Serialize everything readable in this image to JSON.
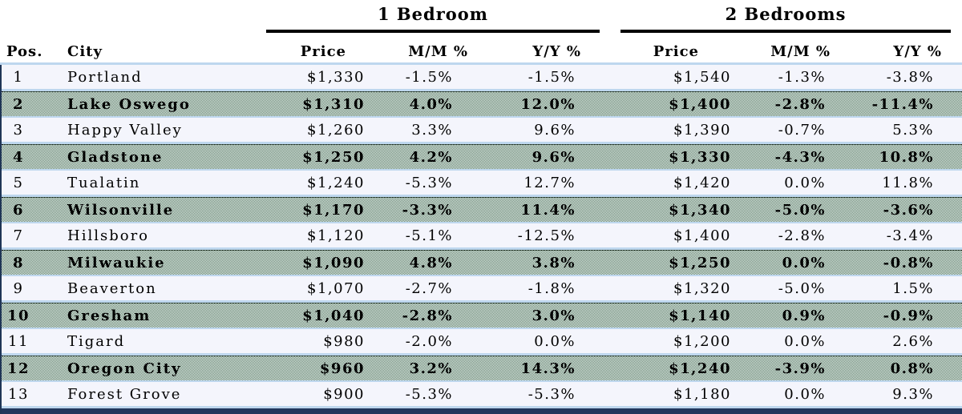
{
  "table": {
    "group_headers": {
      "bed1": "1 Bedroom",
      "bed2": "2 Bedrooms"
    },
    "columns": {
      "pos": "Pos.",
      "city": "City",
      "price": "Price",
      "mm": "M/M %",
      "yy": "Y/Y %"
    },
    "colors": {
      "highlight_row_green": "#5d8266",
      "plain_row": "#f4f5fc",
      "row_separator_blue": "#bed7ee",
      "table_border_navy": "#22375c",
      "text": "#000000"
    }
  },
  "chart_data": {
    "type": "table",
    "title": "",
    "group_headers": [
      "1 Bedroom",
      "2 Bedrooms"
    ],
    "columns": [
      "Pos.",
      "City",
      "Price",
      "M/M %",
      "Y/Y %",
      "Price",
      "M/M %",
      "Y/Y %"
    ],
    "rows": [
      {
        "highlight": false,
        "cells": [
          "1",
          "Portland",
          "$1,330",
          "-1.5%",
          "-1.5%",
          "$1,540",
          "-1.3%",
          "-3.8%"
        ]
      },
      {
        "highlight": true,
        "cells": [
          "2",
          "Lake Oswego",
          "$1,310",
          "4.0%",
          "12.0%",
          "$1,400",
          "-2.8%",
          "-11.4%"
        ]
      },
      {
        "highlight": false,
        "cells": [
          "3",
          "Happy Valley",
          "$1,260",
          "3.3%",
          "9.6%",
          "$1,390",
          "-0.7%",
          "5.3%"
        ]
      },
      {
        "highlight": true,
        "cells": [
          "4",
          "Gladstone",
          "$1,250",
          "4.2%",
          "9.6%",
          "$1,330",
          "-4.3%",
          "10.8%"
        ]
      },
      {
        "highlight": false,
        "cells": [
          "5",
          "Tualatin",
          "$1,240",
          "-5.3%",
          "12.7%",
          "$1,420",
          "0.0%",
          "11.8%"
        ]
      },
      {
        "highlight": true,
        "cells": [
          "6",
          "Wilsonville",
          "$1,170",
          "-3.3%",
          "11.4%",
          "$1,340",
          "-5.0%",
          "-3.6%"
        ]
      },
      {
        "highlight": false,
        "cells": [
          "7",
          "Hillsboro",
          "$1,120",
          "-5.1%",
          "-12.5%",
          "$1,400",
          "-2.8%",
          "-3.4%"
        ]
      },
      {
        "highlight": true,
        "cells": [
          "8",
          "Milwaukie",
          "$1,090",
          "4.8%",
          "3.8%",
          "$1,250",
          "0.0%",
          "-0.8%"
        ]
      },
      {
        "highlight": false,
        "cells": [
          "9",
          "Beaverton",
          "$1,070",
          "-2.7%",
          "-1.8%",
          "$1,320",
          "-5.0%",
          "1.5%"
        ]
      },
      {
        "highlight": true,
        "cells": [
          "10",
          "Gresham",
          "$1,040",
          "-2.8%",
          "3.0%",
          "$1,140",
          "0.9%",
          "-0.9%"
        ]
      },
      {
        "highlight": false,
        "cells": [
          "11",
          "Tigard",
          "$980",
          "-2.0%",
          "0.0%",
          "$1,200",
          "0.0%",
          "2.6%"
        ]
      },
      {
        "highlight": true,
        "cells": [
          "12",
          "Oregon City",
          "$960",
          "3.2%",
          "14.3%",
          "$1,240",
          "-3.9%",
          "0.8%"
        ]
      },
      {
        "highlight": false,
        "cells": [
          "13",
          "Forest Grove",
          "$900",
          "-5.3%",
          "-5.3%",
          "$1,180",
          "0.0%",
          "9.3%"
        ]
      }
    ]
  }
}
